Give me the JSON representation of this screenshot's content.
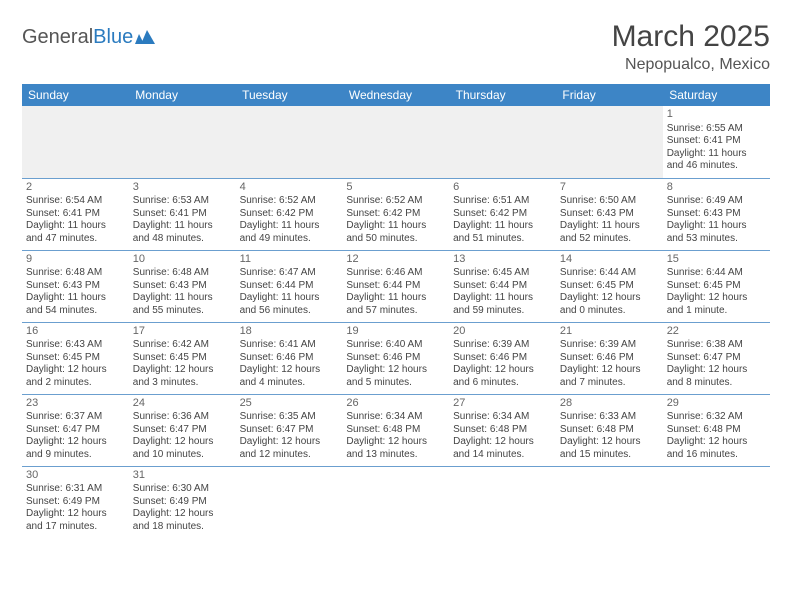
{
  "logo": {
    "text1": "General",
    "text2": "Blue",
    "accent": "#2b7bbf"
  },
  "title": "March 2025",
  "location": "Nepopualco, Mexico",
  "colors": {
    "header_bg": "#3d85c6",
    "header_text": "#ffffff",
    "grid_line": "#6b9fcf",
    "blank_bg": "#f0f0f0",
    "text": "#444444"
  },
  "days": [
    "Sunday",
    "Monday",
    "Tuesday",
    "Wednesday",
    "Thursday",
    "Friday",
    "Saturday"
  ],
  "weeks": [
    [
      null,
      null,
      null,
      null,
      null,
      null,
      {
        "n": "1",
        "sr": "Sunrise: 6:55 AM",
        "ss": "Sunset: 6:41 PM",
        "dl": "Daylight: 11 hours and 46 minutes."
      }
    ],
    [
      {
        "n": "2",
        "sr": "Sunrise: 6:54 AM",
        "ss": "Sunset: 6:41 PM",
        "dl": "Daylight: 11 hours and 47 minutes."
      },
      {
        "n": "3",
        "sr": "Sunrise: 6:53 AM",
        "ss": "Sunset: 6:41 PM",
        "dl": "Daylight: 11 hours and 48 minutes."
      },
      {
        "n": "4",
        "sr": "Sunrise: 6:52 AM",
        "ss": "Sunset: 6:42 PM",
        "dl": "Daylight: 11 hours and 49 minutes."
      },
      {
        "n": "5",
        "sr": "Sunrise: 6:52 AM",
        "ss": "Sunset: 6:42 PM",
        "dl": "Daylight: 11 hours and 50 minutes."
      },
      {
        "n": "6",
        "sr": "Sunrise: 6:51 AM",
        "ss": "Sunset: 6:42 PM",
        "dl": "Daylight: 11 hours and 51 minutes."
      },
      {
        "n": "7",
        "sr": "Sunrise: 6:50 AM",
        "ss": "Sunset: 6:43 PM",
        "dl": "Daylight: 11 hours and 52 minutes."
      },
      {
        "n": "8",
        "sr": "Sunrise: 6:49 AM",
        "ss": "Sunset: 6:43 PM",
        "dl": "Daylight: 11 hours and 53 minutes."
      }
    ],
    [
      {
        "n": "9",
        "sr": "Sunrise: 6:48 AM",
        "ss": "Sunset: 6:43 PM",
        "dl": "Daylight: 11 hours and 54 minutes."
      },
      {
        "n": "10",
        "sr": "Sunrise: 6:48 AM",
        "ss": "Sunset: 6:43 PM",
        "dl": "Daylight: 11 hours and 55 minutes."
      },
      {
        "n": "11",
        "sr": "Sunrise: 6:47 AM",
        "ss": "Sunset: 6:44 PM",
        "dl": "Daylight: 11 hours and 56 minutes."
      },
      {
        "n": "12",
        "sr": "Sunrise: 6:46 AM",
        "ss": "Sunset: 6:44 PM",
        "dl": "Daylight: 11 hours and 57 minutes."
      },
      {
        "n": "13",
        "sr": "Sunrise: 6:45 AM",
        "ss": "Sunset: 6:44 PM",
        "dl": "Daylight: 11 hours and 59 minutes."
      },
      {
        "n": "14",
        "sr": "Sunrise: 6:44 AM",
        "ss": "Sunset: 6:45 PM",
        "dl": "Daylight: 12 hours and 0 minutes."
      },
      {
        "n": "15",
        "sr": "Sunrise: 6:44 AM",
        "ss": "Sunset: 6:45 PM",
        "dl": "Daylight: 12 hours and 1 minute."
      }
    ],
    [
      {
        "n": "16",
        "sr": "Sunrise: 6:43 AM",
        "ss": "Sunset: 6:45 PM",
        "dl": "Daylight: 12 hours and 2 minutes."
      },
      {
        "n": "17",
        "sr": "Sunrise: 6:42 AM",
        "ss": "Sunset: 6:45 PM",
        "dl": "Daylight: 12 hours and 3 minutes."
      },
      {
        "n": "18",
        "sr": "Sunrise: 6:41 AM",
        "ss": "Sunset: 6:46 PM",
        "dl": "Daylight: 12 hours and 4 minutes."
      },
      {
        "n": "19",
        "sr": "Sunrise: 6:40 AM",
        "ss": "Sunset: 6:46 PM",
        "dl": "Daylight: 12 hours and 5 minutes."
      },
      {
        "n": "20",
        "sr": "Sunrise: 6:39 AM",
        "ss": "Sunset: 6:46 PM",
        "dl": "Daylight: 12 hours and 6 minutes."
      },
      {
        "n": "21",
        "sr": "Sunrise: 6:39 AM",
        "ss": "Sunset: 6:46 PM",
        "dl": "Daylight: 12 hours and 7 minutes."
      },
      {
        "n": "22",
        "sr": "Sunrise: 6:38 AM",
        "ss": "Sunset: 6:47 PM",
        "dl": "Daylight: 12 hours and 8 minutes."
      }
    ],
    [
      {
        "n": "23",
        "sr": "Sunrise: 6:37 AM",
        "ss": "Sunset: 6:47 PM",
        "dl": "Daylight: 12 hours and 9 minutes."
      },
      {
        "n": "24",
        "sr": "Sunrise: 6:36 AM",
        "ss": "Sunset: 6:47 PM",
        "dl": "Daylight: 12 hours and 10 minutes."
      },
      {
        "n": "25",
        "sr": "Sunrise: 6:35 AM",
        "ss": "Sunset: 6:47 PM",
        "dl": "Daylight: 12 hours and 12 minutes."
      },
      {
        "n": "26",
        "sr": "Sunrise: 6:34 AM",
        "ss": "Sunset: 6:48 PM",
        "dl": "Daylight: 12 hours and 13 minutes."
      },
      {
        "n": "27",
        "sr": "Sunrise: 6:34 AM",
        "ss": "Sunset: 6:48 PM",
        "dl": "Daylight: 12 hours and 14 minutes."
      },
      {
        "n": "28",
        "sr": "Sunrise: 6:33 AM",
        "ss": "Sunset: 6:48 PM",
        "dl": "Daylight: 12 hours and 15 minutes."
      },
      {
        "n": "29",
        "sr": "Sunrise: 6:32 AM",
        "ss": "Sunset: 6:48 PM",
        "dl": "Daylight: 12 hours and 16 minutes."
      }
    ],
    [
      {
        "n": "30",
        "sr": "Sunrise: 6:31 AM",
        "ss": "Sunset: 6:49 PM",
        "dl": "Daylight: 12 hours and 17 minutes."
      },
      {
        "n": "31",
        "sr": "Sunrise: 6:30 AM",
        "ss": "Sunset: 6:49 PM",
        "dl": "Daylight: 12 hours and 18 minutes."
      },
      null,
      null,
      null,
      null,
      null
    ]
  ]
}
